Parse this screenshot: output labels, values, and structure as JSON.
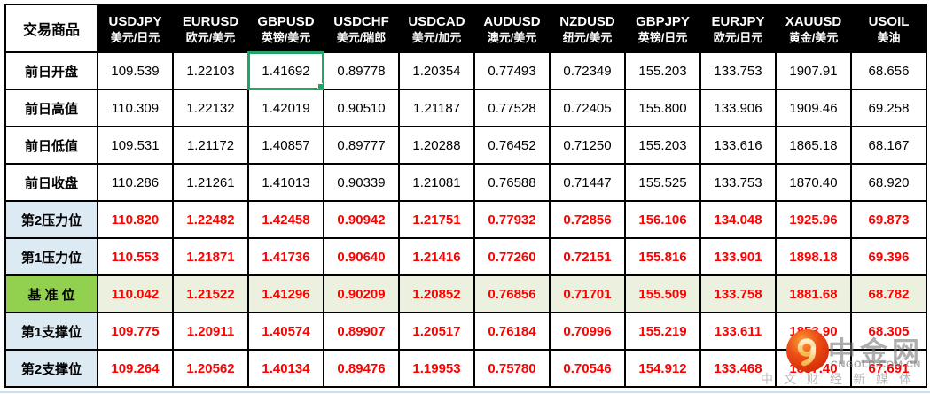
{
  "table": {
    "corner_label": "交易商品",
    "columns": [
      {
        "symbol": "USDJPY",
        "pair": "美元/日元"
      },
      {
        "symbol": "EURUSD",
        "pair": "欧元/美元"
      },
      {
        "symbol": "GBPUSD",
        "pair": "英镑/美元"
      },
      {
        "symbol": "USDCHF",
        "pair": "美元/瑞郎"
      },
      {
        "symbol": "USDCAD",
        "pair": "美元/加元"
      },
      {
        "symbol": "AUDUSD",
        "pair": "澳元/美元"
      },
      {
        "symbol": "NZDUSD",
        "pair": "纽元/美元"
      },
      {
        "symbol": "GBPJPY",
        "pair": "英镑/日元"
      },
      {
        "symbol": "EURJPY",
        "pair": "欧元/日元"
      },
      {
        "symbol": "XAUUSD",
        "pair": "黄金/美元"
      },
      {
        "symbol": "USOIL",
        "pair": "美油"
      }
    ],
    "rows": [
      {
        "label": "前日开盘",
        "type": "plain",
        "values": [
          "109.539",
          "1.22103",
          "1.41692",
          "0.89778",
          "1.20354",
          "0.77493",
          "0.72349",
          "155.203",
          "133.753",
          "1907.91",
          "68.656"
        ]
      },
      {
        "label": "前日高值",
        "type": "plain",
        "values": [
          "110.309",
          "1.22132",
          "1.42019",
          "0.90510",
          "1.21187",
          "0.77528",
          "0.72405",
          "155.800",
          "133.906",
          "1909.46",
          "69.258"
        ]
      },
      {
        "label": "前日低值",
        "type": "plain",
        "values": [
          "109.531",
          "1.21172",
          "1.40857",
          "0.89777",
          "1.20288",
          "0.76452",
          "0.71250",
          "155.203",
          "133.616",
          "1865.18",
          "68.167"
        ]
      },
      {
        "label": "前日收盘",
        "type": "plain",
        "values": [
          "110.286",
          "1.21261",
          "1.41013",
          "0.90339",
          "1.21081",
          "0.76588",
          "0.71447",
          "155.525",
          "133.753",
          "1870.40",
          "68.920"
        ]
      },
      {
        "label": "第2压力位",
        "type": "level",
        "values": [
          "110.820",
          "1.22482",
          "1.42458",
          "0.90942",
          "1.21751",
          "0.77932",
          "0.72856",
          "156.106",
          "134.048",
          "1925.96",
          "69.873"
        ]
      },
      {
        "label": "第1压力位",
        "type": "level",
        "values": [
          "110.553",
          "1.21871",
          "1.41736",
          "0.90640",
          "1.21416",
          "0.77260",
          "0.72151",
          "155.816",
          "133.901",
          "1898.18",
          "69.396"
        ]
      },
      {
        "label": "基 准 位",
        "type": "base",
        "values": [
          "110.042",
          "1.21522",
          "1.41296",
          "0.90209",
          "1.20852",
          "0.76856",
          "0.71701",
          "155.509",
          "133.758",
          "1881.68",
          "68.782"
        ]
      },
      {
        "label": "第1支撑位",
        "type": "level",
        "values": [
          "109.775",
          "1.20911",
          "1.40574",
          "0.89907",
          "1.20517",
          "0.76184",
          "0.70996",
          "155.219",
          "133.611",
          "1853.90",
          "68.305"
        ]
      },
      {
        "label": "第2支撑位",
        "type": "level",
        "values": [
          "109.264",
          "1.20562",
          "1.40134",
          "0.89476",
          "1.19953",
          "0.75780",
          "0.70546",
          "154.912",
          "133.468",
          "1837.40",
          "67.691"
        ]
      }
    ]
  },
  "selected_cell": {
    "row_index": 0,
    "col_index": 2,
    "column": "GBPUSD",
    "row": "前日开盘",
    "value": "1.41692"
  },
  "watermark": {
    "brand": "中金网",
    "domain": "CNGOLD.COM.CN",
    "tagline": "中文财经新媒体"
  },
  "colors": {
    "header_bg": "#000000",
    "header_text": "#FFFFFF",
    "level_label_blue": "#DCEAF4",
    "base_label_green": "#92D050",
    "base_row_green": "#EBF1DE",
    "value_red": "#FF0000",
    "selection_green": "#21A567",
    "grid_border": "#000000",
    "logo_red": "#E8380D",
    "watermark_gray": "#8C8C8C"
  }
}
